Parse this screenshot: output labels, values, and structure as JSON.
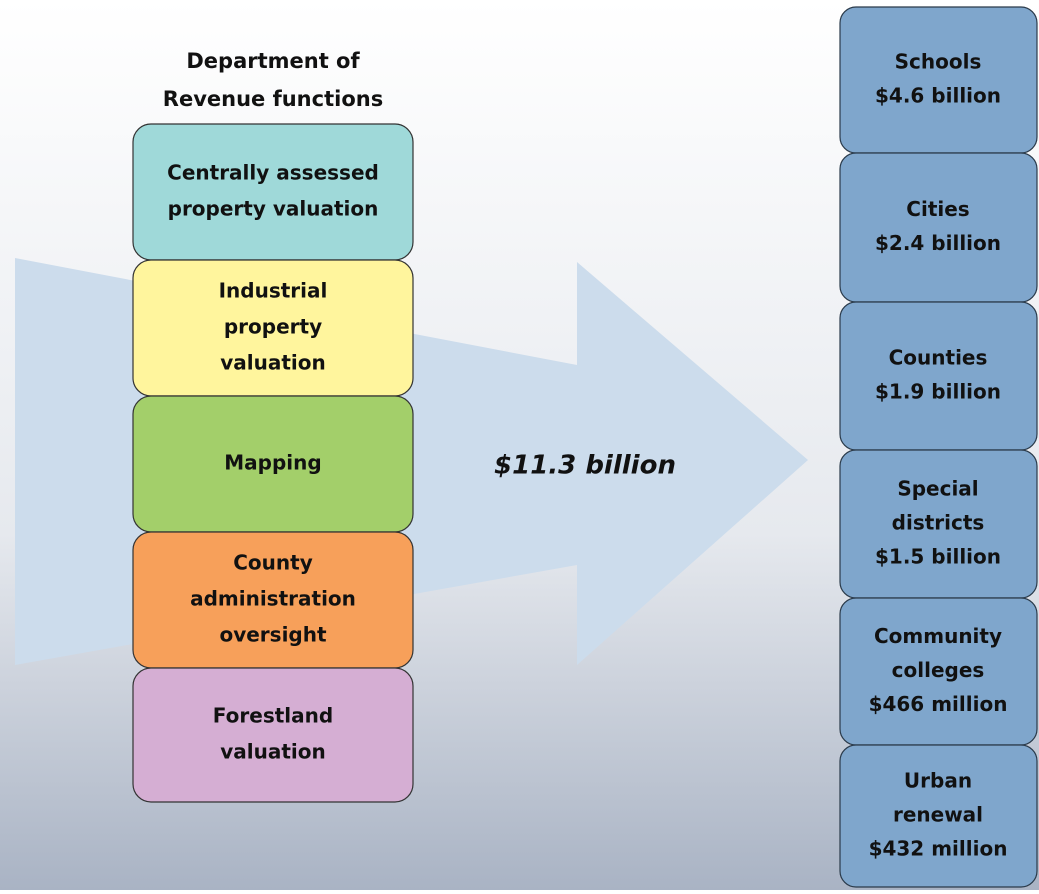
{
  "header": {
    "title": [
      "Department of",
      "Revenue functions"
    ]
  },
  "functions": [
    {
      "lines": [
        "Centrally assessed",
        "property valuation"
      ],
      "color": "#9fd9d9"
    },
    {
      "lines": [
        "Industrial",
        "property",
        "valuation"
      ],
      "color": "#fff59d"
    },
    {
      "lines": [
        "Mapping"
      ],
      "color": "#a3cf6a"
    },
    {
      "lines": [
        "County",
        "administration",
        "oversight"
      ],
      "color": "#f7a05a"
    },
    {
      "lines": [
        "Forestland",
        "valuation"
      ],
      "color": "#d5aed3"
    }
  ],
  "total": "$11.3 billion",
  "recipients": [
    {
      "lines": [
        "Schools",
        "$4.6 billion"
      ]
    },
    {
      "lines": [
        "Cities",
        "$2.4 billion"
      ]
    },
    {
      "lines": [
        "Counties",
        "$1.9 billion"
      ]
    },
    {
      "lines": [
        "Special",
        "districts",
        "$1.5 billion"
      ]
    },
    {
      "lines": [
        "Community",
        "colleges",
        "$466 million"
      ]
    },
    {
      "lines": [
        "Urban",
        "renewal",
        "$432 million"
      ]
    }
  ]
}
